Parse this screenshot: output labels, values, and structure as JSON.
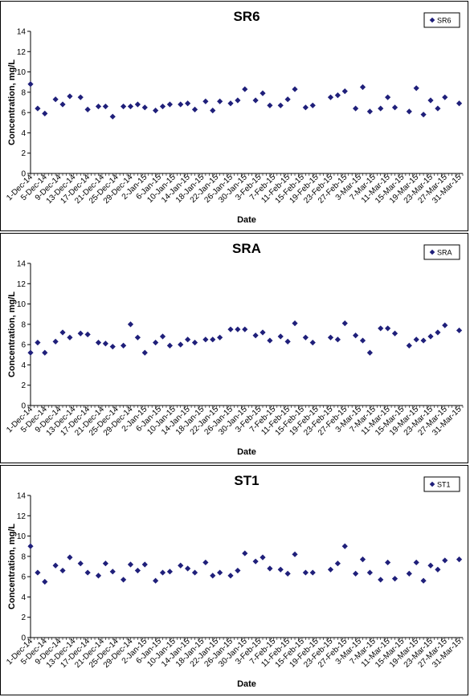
{
  "chart_data": [
    {
      "type": "scatter",
      "title": "SR6",
      "xlabel": "Date",
      "ylabel": "Concentration, mg/L",
      "ylim": [
        0,
        14
      ],
      "yticks": [
        0,
        2,
        4,
        6,
        8,
        10,
        12,
        14
      ],
      "xlim": [
        "2014-12-01",
        "2015-04-01"
      ],
      "xticks": [
        "1-Dec-14",
        "5-Dec-14",
        "9-Dec-14",
        "13-Dec-14",
        "17-Dec-14",
        "21-Dec-14",
        "25-Dec-14",
        "29-Dec-14",
        "2-Jan-15",
        "6-Jan-15",
        "10-Jan-15",
        "14-Jan-15",
        "18-Jan-15",
        "22-Jan-15",
        "26-Jan-15",
        "30-Jan-15",
        "3-Feb-15",
        "7-Feb-15",
        "11-Feb-15",
        "15-Feb-15",
        "19-Feb-15",
        "23-Feb-15",
        "27-Feb-15",
        "3-Mar-15",
        "7-Mar-15",
        "11-Mar-15",
        "15-Mar-15",
        "19-Mar-15",
        "23-Mar-15",
        "27-Mar-15",
        "31-Mar-15"
      ],
      "legend": "top-right",
      "color": "#1F1F7A",
      "series": [
        {
          "name": "SR6",
          "points": [
            [
              "2014-12-01",
              8.8
            ],
            [
              "2014-12-03",
              6.4
            ],
            [
              "2014-12-05",
              5.9
            ],
            [
              "2014-12-08",
              7.3
            ],
            [
              "2014-12-10",
              6.8
            ],
            [
              "2014-12-12",
              7.6
            ],
            [
              "2014-12-15",
              7.5
            ],
            [
              "2014-12-17",
              6.3
            ],
            [
              "2014-12-20",
              6.6
            ],
            [
              "2014-12-22",
              6.6
            ],
            [
              "2014-12-24",
              5.6
            ],
            [
              "2014-12-27",
              6.6
            ],
            [
              "2014-12-29",
              6.6
            ],
            [
              "2014-12-31",
              6.8
            ],
            [
              "2015-01-02",
              6.5
            ],
            [
              "2015-01-05",
              6.2
            ],
            [
              "2015-01-07",
              6.6
            ],
            [
              "2015-01-09",
              6.8
            ],
            [
              "2015-01-12",
              6.8
            ],
            [
              "2015-01-14",
              6.9
            ],
            [
              "2015-01-16",
              6.3
            ],
            [
              "2015-01-19",
              7.1
            ],
            [
              "2015-01-21",
              6.2
            ],
            [
              "2015-01-23",
              7.1
            ],
            [
              "2015-01-26",
              6.9
            ],
            [
              "2015-01-28",
              7.2
            ],
            [
              "2015-01-30",
              8.3
            ],
            [
              "2015-02-02",
              7.2
            ],
            [
              "2015-02-04",
              7.9
            ],
            [
              "2015-02-06",
              6.7
            ],
            [
              "2015-02-09",
              6.7
            ],
            [
              "2015-02-11",
              7.3
            ],
            [
              "2015-02-13",
              8.3
            ],
            [
              "2015-02-16",
              6.5
            ],
            [
              "2015-02-18",
              6.7
            ],
            [
              "2015-02-23",
              7.5
            ],
            [
              "2015-02-25",
              7.7
            ],
            [
              "2015-02-27",
              8.1
            ],
            [
              "2015-03-02",
              6.4
            ],
            [
              "2015-03-04",
              8.5
            ],
            [
              "2015-03-06",
              6.1
            ],
            [
              "2015-03-09",
              6.4
            ],
            [
              "2015-03-11",
              7.5
            ],
            [
              "2015-03-13",
              6.5
            ],
            [
              "2015-03-17",
              6.1
            ],
            [
              "2015-03-19",
              8.4
            ],
            [
              "2015-03-21",
              5.8
            ],
            [
              "2015-03-23",
              7.2
            ],
            [
              "2015-03-25",
              6.4
            ],
            [
              "2015-03-27",
              7.5
            ],
            [
              "2015-03-31",
              6.9
            ]
          ]
        }
      ]
    },
    {
      "type": "scatter",
      "title": "SRA",
      "xlabel": "Date",
      "ylabel": "Concentration, mg/L",
      "ylim": [
        0,
        14
      ],
      "yticks": [
        0,
        2,
        4,
        6,
        8,
        10,
        12,
        14
      ],
      "xlim": [
        "2014-12-01",
        "2015-04-01"
      ],
      "xticks": [
        "1-Dec-14",
        "5-Dec-14",
        "9-Dec-14",
        "13-Dec-14",
        "17-Dec-14",
        "21-Dec-14",
        "25-Dec-14",
        "29-Dec-14",
        "2-Jan-15",
        "6-Jan-15",
        "10-Jan-15",
        "14-Jan-15",
        "18-Jan-15",
        "22-Jan-15",
        "26-Jan-15",
        "30-Jan-15",
        "3-Feb-15",
        "7-Feb-15",
        "11-Feb-15",
        "15-Feb-15",
        "19-Feb-15",
        "23-Feb-15",
        "27-Feb-15",
        "3-Mar-15",
        "7-Mar-15",
        "11-Mar-15",
        "15-Mar-15",
        "19-Mar-15",
        "23-Mar-15",
        "27-Mar-15",
        "31-Mar-15"
      ],
      "legend": "top-right",
      "color": "#1F1F7A",
      "series": [
        {
          "name": "SRA",
          "points": [
            [
              "2014-12-01",
              5.2
            ],
            [
              "2014-12-03",
              6.2
            ],
            [
              "2014-12-05",
              5.2
            ],
            [
              "2014-12-08",
              6.3
            ],
            [
              "2014-12-10",
              7.2
            ],
            [
              "2014-12-12",
              6.7
            ],
            [
              "2014-12-15",
              7.1
            ],
            [
              "2014-12-17",
              7.0
            ],
            [
              "2014-12-20",
              6.2
            ],
            [
              "2014-12-22",
              6.1
            ],
            [
              "2014-12-24",
              5.8
            ],
            [
              "2014-12-27",
              5.9
            ],
            [
              "2014-12-29",
              8.0
            ],
            [
              "2014-12-31",
              6.7
            ],
            [
              "2015-01-02",
              5.2
            ],
            [
              "2015-01-05",
              6.2
            ],
            [
              "2015-01-07",
              6.8
            ],
            [
              "2015-01-09",
              5.9
            ],
            [
              "2015-01-12",
              6.0
            ],
            [
              "2015-01-14",
              6.5
            ],
            [
              "2015-01-16",
              6.2
            ],
            [
              "2015-01-19",
              6.5
            ],
            [
              "2015-01-21",
              6.5
            ],
            [
              "2015-01-23",
              6.7
            ],
            [
              "2015-01-26",
              7.5
            ],
            [
              "2015-01-28",
              7.5
            ],
            [
              "2015-01-30",
              7.5
            ],
            [
              "2015-02-02",
              6.9
            ],
            [
              "2015-02-04",
              7.2
            ],
            [
              "2015-02-06",
              6.4
            ],
            [
              "2015-02-09",
              6.8
            ],
            [
              "2015-02-11",
              6.3
            ],
            [
              "2015-02-13",
              8.1
            ],
            [
              "2015-02-16",
              6.7
            ],
            [
              "2015-02-18",
              6.2
            ],
            [
              "2015-02-23",
              6.7
            ],
            [
              "2015-02-25",
              6.5
            ],
            [
              "2015-02-27",
              8.1
            ],
            [
              "2015-03-02",
              6.9
            ],
            [
              "2015-03-04",
              6.4
            ],
            [
              "2015-03-06",
              5.2
            ],
            [
              "2015-03-09",
              7.6
            ],
            [
              "2015-03-11",
              7.6
            ],
            [
              "2015-03-13",
              7.1
            ],
            [
              "2015-03-17",
              5.9
            ],
            [
              "2015-03-19",
              6.5
            ],
            [
              "2015-03-21",
              6.4
            ],
            [
              "2015-03-23",
              6.8
            ],
            [
              "2015-03-25",
              7.2
            ],
            [
              "2015-03-27",
              7.9
            ],
            [
              "2015-03-31",
              7.4
            ]
          ]
        }
      ]
    },
    {
      "type": "scatter",
      "title": "ST1",
      "xlabel": "Date",
      "ylabel": "Concentration, mg/L",
      "ylim": [
        0,
        14
      ],
      "yticks": [
        0,
        2,
        4,
        6,
        8,
        10,
        12,
        14
      ],
      "xlim": [
        "2014-12-01",
        "2015-04-01"
      ],
      "xticks": [
        "1-Dec-14",
        "5-Dec-14",
        "9-Dec-14",
        "13-Dec-14",
        "17-Dec-14",
        "21-Dec-14",
        "25-Dec-14",
        "29-Dec-14",
        "2-Jan-15",
        "6-Jan-15",
        "10-Jan-15",
        "14-Jan-15",
        "18-Jan-15",
        "22-Jan-15",
        "26-Jan-15",
        "30-Jan-15",
        "3-Feb-15",
        "7-Feb-15",
        "11-Feb-15",
        "15-Feb-15",
        "19-Feb-15",
        "23-Feb-15",
        "27-Feb-15",
        "3-Mar-15",
        "7-Mar-15",
        "11-Mar-15",
        "15-Mar-15",
        "19-Mar-15",
        "23-Mar-15",
        "27-Mar-15",
        "31-Mar-15"
      ],
      "legend": "top-right",
      "color": "#1F1F7A",
      "series": [
        {
          "name": "ST1",
          "points": [
            [
              "2014-12-01",
              9.0
            ],
            [
              "2014-12-03",
              6.4
            ],
            [
              "2014-12-05",
              5.5
            ],
            [
              "2014-12-08",
              7.1
            ],
            [
              "2014-12-10",
              6.6
            ],
            [
              "2014-12-12",
              7.9
            ],
            [
              "2014-12-15",
              7.3
            ],
            [
              "2014-12-17",
              6.4
            ],
            [
              "2014-12-20",
              6.1
            ],
            [
              "2014-12-22",
              7.3
            ],
            [
              "2014-12-24",
              6.5
            ],
            [
              "2014-12-27",
              5.7
            ],
            [
              "2014-12-29",
              7.2
            ],
            [
              "2014-12-31",
              6.6
            ],
            [
              "2015-01-02",
              7.2
            ],
            [
              "2015-01-05",
              5.6
            ],
            [
              "2015-01-07",
              6.4
            ],
            [
              "2015-01-09",
              6.5
            ],
            [
              "2015-01-12",
              7.1
            ],
            [
              "2015-01-14",
              6.8
            ],
            [
              "2015-01-16",
              6.4
            ],
            [
              "2015-01-19",
              7.4
            ],
            [
              "2015-01-21",
              6.1
            ],
            [
              "2015-01-23",
              6.4
            ],
            [
              "2015-01-26",
              6.1
            ],
            [
              "2015-01-28",
              6.6
            ],
            [
              "2015-01-30",
              8.3
            ],
            [
              "2015-02-02",
              7.5
            ],
            [
              "2015-02-04",
              7.9
            ],
            [
              "2015-02-06",
              6.8
            ],
            [
              "2015-02-09",
              6.7
            ],
            [
              "2015-02-11",
              6.3
            ],
            [
              "2015-02-13",
              8.2
            ],
            [
              "2015-02-16",
              6.4
            ],
            [
              "2015-02-18",
              6.4
            ],
            [
              "2015-02-23",
              6.7
            ],
            [
              "2015-02-25",
              7.3
            ],
            [
              "2015-02-27",
              9.0
            ],
            [
              "2015-03-02",
              6.3
            ],
            [
              "2015-03-04",
              7.7
            ],
            [
              "2015-03-06",
              6.4
            ],
            [
              "2015-03-09",
              5.7
            ],
            [
              "2015-03-11",
              7.4
            ],
            [
              "2015-03-13",
              5.8
            ],
            [
              "2015-03-17",
              6.3
            ],
            [
              "2015-03-19",
              7.4
            ],
            [
              "2015-03-21",
              5.6
            ],
            [
              "2015-03-23",
              7.1
            ],
            [
              "2015-03-25",
              6.7
            ],
            [
              "2015-03-27",
              7.6
            ],
            [
              "2015-03-31",
              7.7
            ]
          ]
        }
      ]
    }
  ]
}
